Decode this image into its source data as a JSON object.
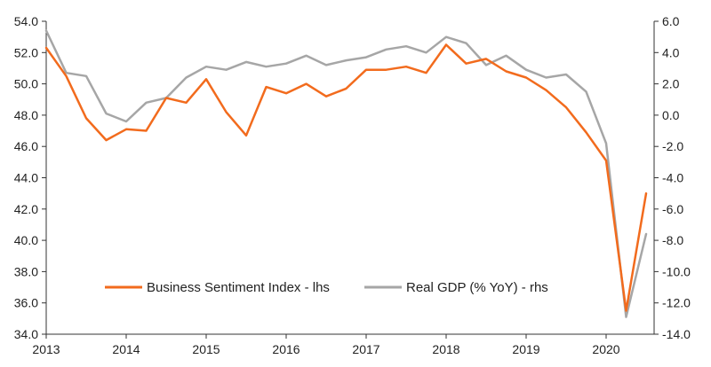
{
  "chart_data": {
    "type": "line",
    "title": "",
    "xlabel": "",
    "ylabel_left": "",
    "ylabel_right": "",
    "x_ticks": [
      "2013",
      "2014",
      "2015",
      "2016",
      "2017",
      "2018",
      "2019",
      "2020"
    ],
    "x_range": [
      2013.0,
      2020.6
    ],
    "y_left": {
      "range": [
        34.0,
        54.0
      ],
      "ticks": [
        "34.0",
        "36.0",
        "38.0",
        "40.0",
        "42.0",
        "44.0",
        "46.0",
        "48.0",
        "50.0",
        "52.0",
        "54.0"
      ]
    },
    "y_right": {
      "range": [
        -14.0,
        6.0
      ],
      "ticks": [
        "-14.0",
        "-12.0",
        "-10.0",
        "-8.0",
        "-6.0",
        "-4.0",
        "-2.0",
        "0.0",
        "2.0",
        "4.0",
        "6.0"
      ]
    },
    "grid": false,
    "legend_position": "bottom-center",
    "series": [
      {
        "name": "Business Sentiment Index - lhs",
        "axis": "left",
        "color": "#f26b1d",
        "points": [
          [
            2013.0,
            52.3
          ],
          [
            2013.25,
            50.5
          ],
          [
            2013.5,
            47.8
          ],
          [
            2013.75,
            46.4
          ],
          [
            2014.0,
            47.1
          ],
          [
            2014.25,
            47.0
          ],
          [
            2014.5,
            49.1
          ],
          [
            2014.75,
            48.8
          ],
          [
            2015.0,
            50.3
          ],
          [
            2015.25,
            48.2
          ],
          [
            2015.5,
            46.7
          ],
          [
            2015.75,
            49.8
          ],
          [
            2016.0,
            49.4
          ],
          [
            2016.25,
            50.0
          ],
          [
            2016.5,
            49.2
          ],
          [
            2016.75,
            49.7
          ],
          [
            2017.0,
            50.9
          ],
          [
            2017.25,
            50.9
          ],
          [
            2017.5,
            51.1
          ],
          [
            2017.75,
            50.7
          ],
          [
            2018.0,
            52.5
          ],
          [
            2018.25,
            51.3
          ],
          [
            2018.5,
            51.6
          ],
          [
            2018.75,
            50.8
          ],
          [
            2019.0,
            50.4
          ],
          [
            2019.25,
            49.6
          ],
          [
            2019.5,
            48.5
          ],
          [
            2019.75,
            46.9
          ],
          [
            2020.0,
            45.1
          ],
          [
            2020.25,
            35.5
          ],
          [
            2020.5,
            43.0
          ]
        ]
      },
      {
        "name": "Real GDP (% YoY) - rhs",
        "axis": "right",
        "color": "#a6a6a6",
        "points": [
          [
            2013.0,
            5.4
          ],
          [
            2013.25,
            2.7
          ],
          [
            2013.5,
            2.5
          ],
          [
            2013.75,
            0.1
          ],
          [
            2014.0,
            -0.4
          ],
          [
            2014.25,
            0.8
          ],
          [
            2014.5,
            1.1
          ],
          [
            2014.75,
            2.4
          ],
          [
            2015.0,
            3.1
          ],
          [
            2015.25,
            2.9
          ],
          [
            2015.5,
            3.4
          ],
          [
            2015.75,
            3.1
          ],
          [
            2016.0,
            3.3
          ],
          [
            2016.25,
            3.8
          ],
          [
            2016.5,
            3.2
          ],
          [
            2016.75,
            3.5
          ],
          [
            2017.0,
            3.7
          ],
          [
            2017.25,
            4.2
          ],
          [
            2017.5,
            4.4
          ],
          [
            2017.75,
            4.0
          ],
          [
            2018.0,
            5.0
          ],
          [
            2018.25,
            4.6
          ],
          [
            2018.5,
            3.2
          ],
          [
            2018.75,
            3.8
          ],
          [
            2019.0,
            2.9
          ],
          [
            2019.25,
            2.4
          ],
          [
            2019.5,
            2.6
          ],
          [
            2019.75,
            1.5
          ],
          [
            2020.0,
            -1.8
          ],
          [
            2020.25,
            -12.9
          ],
          [
            2020.5,
            -7.6
          ]
        ]
      }
    ]
  }
}
